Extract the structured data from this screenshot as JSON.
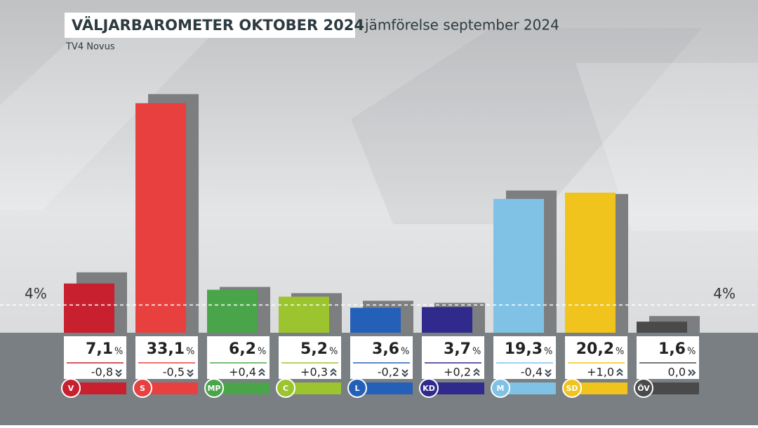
{
  "chart_data": {
    "type": "bar",
    "title": "VÄLJARBAROMETER OKTOBER 2024",
    "subtitle": "jämförelse september 2024",
    "source": "TV4 Novus",
    "unit": "%",
    "categories": [
      "V",
      "S",
      "MP",
      "C",
      "L",
      "KD",
      "M",
      "SD",
      "ÖV"
    ],
    "colors": [
      "#c8202f",
      "#e8403f",
      "#4aa54a",
      "#9cc42e",
      "#2560b8",
      "#2f2a8c",
      "#7fc2e6",
      "#f0c41c",
      "#4a4a4a"
    ],
    "values": [
      7.1,
      33.1,
      6.2,
      5.2,
      3.6,
      3.7,
      19.3,
      20.2,
      1.6
    ],
    "value_labels": [
      "7,1",
      "33,1",
      "6,2",
      "5,2",
      "3,6",
      "3,7",
      "19,3",
      "20,2",
      "1,6"
    ],
    "previous_values": [
      7.9,
      33.6,
      5.8,
      4.9,
      3.8,
      3.5,
      19.7,
      19.2,
      1.6
    ],
    "changes": [
      -0.8,
      -0.5,
      0.4,
      0.3,
      -0.2,
      0.2,
      -0.4,
      1.0,
      0.0
    ],
    "change_labels": [
      "-0,8",
      "-0,5",
      "+0,4",
      "+0,3",
      "-0,2",
      "+0,2",
      "-0,4",
      "+1,0",
      "0,0"
    ],
    "threshold": 4,
    "threshold_label": "4%",
    "ylim": [
      0,
      40
    ]
  }
}
